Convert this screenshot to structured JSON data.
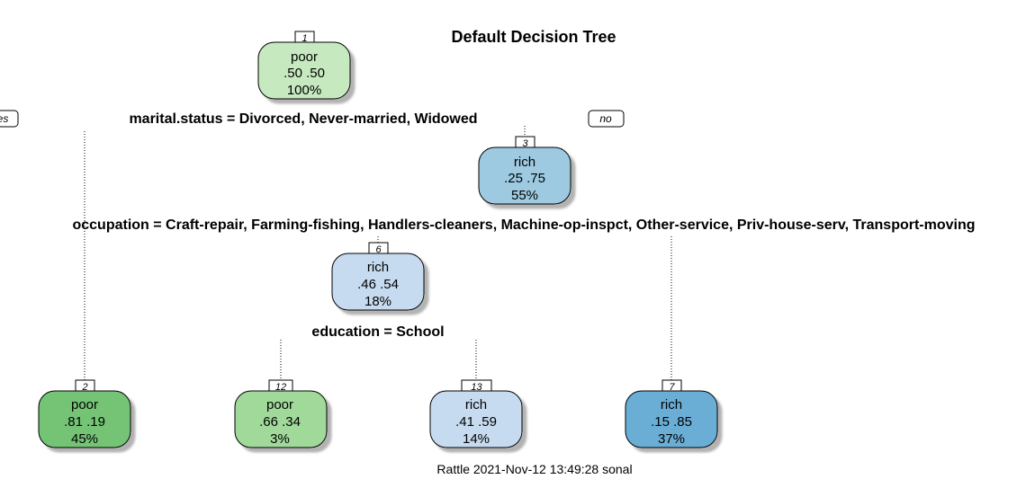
{
  "title": "Default Decision Tree",
  "footer": "Rattle 2021-Nov-12 13:49:28 sonal",
  "branch_labels": {
    "yes": "yes",
    "no": "no"
  },
  "splits": {
    "root": "marital.status =  Divorced, Never-married, Widowed",
    "node3": "occupation =  Craft-repair, Farming-fishing, Handlers-cleaners, Machine-op-inspct, Other-service, Priv-house-serv, Transport-moving",
    "node6": "education = School"
  },
  "nodes": [
    {
      "id": "1",
      "label": "poor",
      "probs": ".50  .50",
      "pct": "100%",
      "fill": "#c7e9c0"
    },
    {
      "id": "3",
      "label": "rich",
      "probs": ".25  .75",
      "pct": "55%",
      "fill": "#9ecae1"
    },
    {
      "id": "6",
      "label": "rich",
      "probs": ".46  .54",
      "pct": "18%",
      "fill": "#c6dbef"
    },
    {
      "id": "2",
      "label": "poor",
      "probs": ".81  .19",
      "pct": "45%",
      "fill": "#74c476"
    },
    {
      "id": "12",
      "label": "poor",
      "probs": ".66  .34",
      "pct": "3%",
      "fill": "#a1d99b"
    },
    {
      "id": "13",
      "label": "rich",
      "probs": ".41  .59",
      "pct": "14%",
      "fill": "#c6dbef"
    },
    {
      "id": "7",
      "label": "rich",
      "probs": ".15  .85",
      "pct": "37%",
      "fill": "#6baed6"
    }
  ]
}
